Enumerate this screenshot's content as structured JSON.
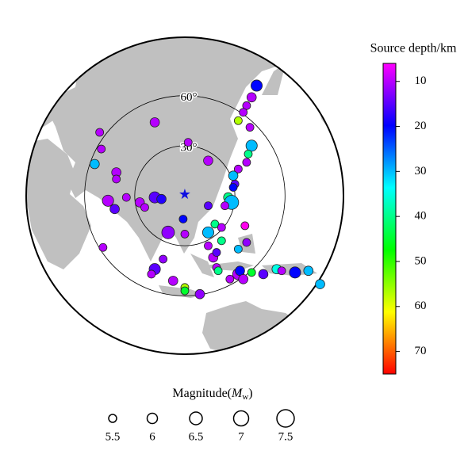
{
  "chart_data": {
    "type": "map-scatter",
    "xlim": [
      -95,
      95
    ],
    "ylim": [
      -95,
      95
    ],
    "range_rings": [
      {
        "value": 30,
        "label": "30°"
      },
      {
        "value": 60,
        "label": "60°"
      }
    ],
    "colorbar": {
      "title": "Source depth/km",
      "lim": [
        6,
        75
      ],
      "ticks": [
        10,
        20,
        30,
        40,
        50,
        60,
        70
      ]
    },
    "size_legend": {
      "prefix": "Magnitude(",
      "symbol": "M",
      "subscript": "w",
      "suffix": ")",
      "values": [
        5.5,
        6,
        6.5,
        7,
        7.5
      ]
    },
    "events": [
      {
        "x": 43,
        "y": 66,
        "magnitude": 6.2,
        "depth": 20
      },
      {
        "x": 40,
        "y": 59,
        "magnitude": 5.8,
        "depth": 10
      },
      {
        "x": 37,
        "y": 54,
        "magnitude": 5.5,
        "depth": 10
      },
      {
        "x": 35,
        "y": 50,
        "magnitude": 5.5,
        "depth": 10
      },
      {
        "x": 32,
        "y": 45,
        "magnitude": 5.5,
        "depth": 57
      },
      {
        "x": 39,
        "y": 41,
        "magnitude": 5.5,
        "depth": 10
      },
      {
        "x": 40,
        "y": 30,
        "magnitude": 6.2,
        "depth": 30
      },
      {
        "x": 38,
        "y": 25,
        "magnitude": 5.5,
        "depth": 40
      },
      {
        "x": 37,
        "y": 20,
        "magnitude": 5.5,
        "depth": 10
      },
      {
        "x": 32,
        "y": 16,
        "magnitude": 5.5,
        "depth": 10
      },
      {
        "x": 29,
        "y": 12,
        "magnitude": 5.8,
        "depth": 30
      },
      {
        "x": 30,
        "y": 7,
        "magnitude": 5.5,
        "depth": 15
      },
      {
        "x": 29,
        "y": 5,
        "magnitude": 5.5,
        "depth": 20
      },
      {
        "x": 26,
        "y": -1,
        "magnitude": 5.8,
        "depth": 40
      },
      {
        "x": 28,
        "y": -4,
        "magnitude": 6.8,
        "depth": 30
      },
      {
        "x": 24,
        "y": -6,
        "magnitude": 5.5,
        "depth": 10
      },
      {
        "x": -51,
        "y": 38,
        "magnitude": 5.5,
        "depth": 10
      },
      {
        "x": -50,
        "y": 28,
        "magnitude": 5.5,
        "depth": 10
      },
      {
        "x": -18,
        "y": 44,
        "magnitude": 5.8,
        "depth": 10
      },
      {
        "x": 2,
        "y": 32,
        "magnitude": 5.5,
        "depth": 10
      },
      {
        "x": 14,
        "y": 21,
        "magnitude": 5.8,
        "depth": 10
      },
      {
        "x": -54,
        "y": 19,
        "magnitude": 5.8,
        "depth": 30
      },
      {
        "x": -41,
        "y": 14,
        "magnitude": 5.8,
        "depth": 10
      },
      {
        "x": -41,
        "y": 10,
        "magnitude": 5.5,
        "depth": 10
      },
      {
        "x": -35,
        "y": -1,
        "magnitude": 5.5,
        "depth": 10
      },
      {
        "x": -46,
        "y": -3,
        "magnitude": 6.2,
        "depth": 10
      },
      {
        "x": -42,
        "y": -8,
        "magnitude": 5.8,
        "depth": 15
      },
      {
        "x": -27,
        "y": -4,
        "magnitude": 5.8,
        "depth": 10
      },
      {
        "x": -18,
        "y": -1,
        "magnitude": 6.2,
        "depth": 15
      },
      {
        "x": -14,
        "y": -2,
        "magnitude": 5.8,
        "depth": 18
      },
      {
        "x": -24,
        "y": -7,
        "magnitude": 5.5,
        "depth": 10
      },
      {
        "x": -10,
        "y": -22,
        "magnitude": 6.5,
        "depth": 12
      },
      {
        "x": 0,
        "y": -23,
        "magnitude": 5.5,
        "depth": 10
      },
      {
        "x": -1,
        "y": -14,
        "magnitude": 5.5,
        "depth": 20
      },
      {
        "x": 14,
        "y": -6,
        "magnitude": 5.5,
        "depth": 15
      },
      {
        "x": 18,
        "y": -17,
        "magnitude": 5.5,
        "depth": 40
      },
      {
        "x": 14,
        "y": -22,
        "magnitude": 6.2,
        "depth": 30
      },
      {
        "x": 22,
        "y": -19,
        "magnitude": 5.5,
        "depth": 10
      },
      {
        "x": 22,
        "y": -27,
        "magnitude": 5.5,
        "depth": 40
      },
      {
        "x": 14,
        "y": -30,
        "magnitude": 5.5,
        "depth": 10
      },
      {
        "x": 17,
        "y": -37,
        "magnitude": 5.8,
        "depth": 10
      },
      {
        "x": 19,
        "y": -34,
        "magnitude": 5.5,
        "depth": 15
      },
      {
        "x": 19,
        "y": -43,
        "magnitude": 5.5,
        "depth": 10
      },
      {
        "x": 32,
        "y": -32,
        "magnitude": 5.5,
        "depth": 30
      },
      {
        "x": 36,
        "y": -18,
        "magnitude": 5.5,
        "depth": 5
      },
      {
        "x": 37,
        "y": -28,
        "magnitude": 5.5,
        "depth": 12
      },
      {
        "x": -49,
        "y": -31,
        "magnitude": 5.5,
        "depth": 10
      },
      {
        "x": -13,
        "y": -38,
        "magnitude": 5.5,
        "depth": 12
      },
      {
        "x": -18,
        "y": -44,
        "magnitude": 6.2,
        "depth": 15
      },
      {
        "x": -7,
        "y": -51,
        "magnitude": 5.8,
        "depth": 10
      },
      {
        "x": 0,
        "y": -55,
        "magnitude": 5.5,
        "depth": 57
      },
      {
        "x": 0,
        "y": -57,
        "magnitude": 5.5,
        "depth": 45
      },
      {
        "x": 9,
        "y": -59,
        "magnitude": 5.8,
        "depth": 12
      },
      {
        "x": 20,
        "y": -45,
        "magnitude": 5.5,
        "depth": 40
      },
      {
        "x": 32,
        "y": -47,
        "magnitude": 6.2,
        "depth": 10
      },
      {
        "x": 27,
        "y": -50,
        "magnitude": 5.5,
        "depth": 10
      },
      {
        "x": 33,
        "y": -45,
        "magnitude": 5.8,
        "depth": 20
      },
      {
        "x": 40,
        "y": -46,
        "magnitude": 5.5,
        "depth": 45
      },
      {
        "x": 47,
        "y": -47,
        "magnitude": 5.8,
        "depth": 15
      },
      {
        "x": 55,
        "y": -44,
        "magnitude": 5.8,
        "depth": 35
      },
      {
        "x": 58,
        "y": -45,
        "magnitude": 5.5,
        "depth": 10
      },
      {
        "x": 66,
        "y": -46,
        "magnitude": 6.2,
        "depth": 20
      },
      {
        "x": 74,
        "y": -45,
        "magnitude": 5.8,
        "depth": 30
      },
      {
        "x": 81,
        "y": -53,
        "magnitude": 5.8,
        "depth": 30
      },
      {
        "x": -20,
        "y": -47,
        "magnitude": 5.5,
        "depth": 10
      },
      {
        "x": 35,
        "y": -50,
        "magnitude": 5.8,
        "depth": 10
      }
    ]
  }
}
